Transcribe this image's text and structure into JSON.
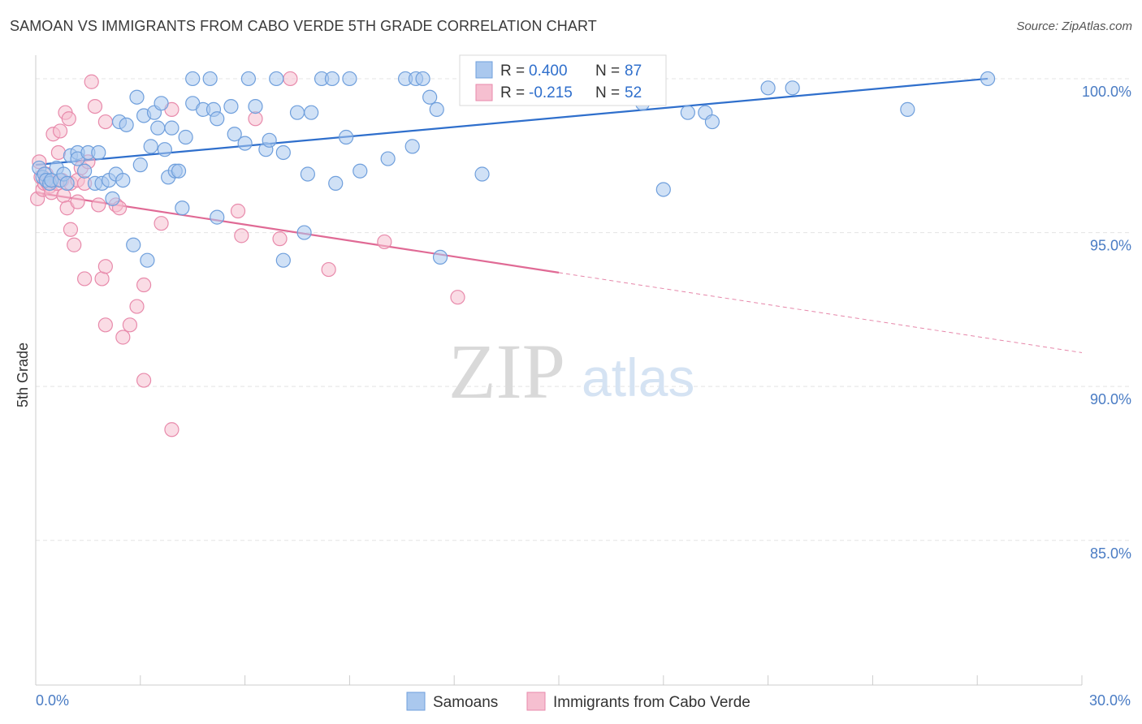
{
  "title": "SAMOAN VS IMMIGRANTS FROM CABO VERDE 5TH GRADE CORRELATION CHART",
  "source": "Source: ZipAtlas.com",
  "watermark": {
    "zip": "ZIP",
    "atlas": "atlas"
  },
  "colors": {
    "blue_fill": "#aac8ee",
    "blue_stroke": "#6f9fdc",
    "blue_line": "#2f6fcc",
    "pink_fill": "#f6bfd0",
    "pink_stroke": "#e88aab",
    "pink_line": "#e06a95",
    "tick_text": "#4a7cc4",
    "grid": "#e4e4e4"
  },
  "legend": {
    "rows": [
      {
        "r_label": "R = ",
        "r_value": "0.400",
        "n_label": "N = ",
        "n_value": "87"
      },
      {
        "r_label": "R = ",
        "r_value": "-0.215",
        "n_label": "N = ",
        "n_value": "52"
      }
    ],
    "placement": "top-center"
  },
  "chart_data": {
    "type": "scatter",
    "title": "SAMOAN VS IMMIGRANTS FROM CABO VERDE 5TH GRADE CORRELATION CHART",
    "xlabel": "",
    "ylabel": "5th Grade",
    "xlim": [
      0,
      30
    ],
    "ylim": [
      80.3,
      100.5
    ],
    "x_tick_labels": [
      "0.0%",
      "30.0%"
    ],
    "y_ticks": [
      85,
      90,
      95,
      100
    ],
    "y_tick_labels": [
      "85.0%",
      "90.0%",
      "95.0%",
      "100.0%"
    ],
    "grid": true,
    "series": [
      {
        "name": "Samoans",
        "color": "#aac8ee",
        "r": 0.4,
        "n": 87,
        "trend": {
          "x": [
            0,
            27.3
          ],
          "y": [
            97.2,
            100.0
          ]
        },
        "points": [
          [
            0.1,
            97.1
          ],
          [
            0.2,
            96.8
          ],
          [
            0.25,
            96.9
          ],
          [
            0.3,
            96.7
          ],
          [
            0.4,
            96.6
          ],
          [
            0.45,
            96.7
          ],
          [
            0.6,
            97.1
          ],
          [
            0.7,
            96.7
          ],
          [
            0.8,
            96.9
          ],
          [
            0.9,
            96.6
          ],
          [
            1.0,
            97.5
          ],
          [
            1.2,
            97.6
          ],
          [
            1.2,
            97.4
          ],
          [
            1.4,
            97.0
          ],
          [
            1.5,
            97.6
          ],
          [
            1.7,
            96.6
          ],
          [
            1.8,
            97.6
          ],
          [
            1.9,
            96.6
          ],
          [
            2.1,
            96.7
          ],
          [
            2.2,
            96.1
          ],
          [
            2.3,
            96.9
          ],
          [
            2.4,
            98.6
          ],
          [
            2.5,
            96.7
          ],
          [
            2.6,
            98.5
          ],
          [
            2.8,
            94.6
          ],
          [
            2.9,
            99.4
          ],
          [
            3.0,
            97.2
          ],
          [
            3.1,
            98.8
          ],
          [
            3.2,
            94.1
          ],
          [
            3.3,
            97.8
          ],
          [
            3.4,
            98.9
          ],
          [
            3.5,
            98.4
          ],
          [
            3.6,
            99.2
          ],
          [
            3.7,
            97.7
          ],
          [
            3.8,
            96.8
          ],
          [
            3.9,
            98.4
          ],
          [
            4.0,
            97.0
          ],
          [
            4.1,
            97.0
          ],
          [
            4.2,
            95.8
          ],
          [
            4.3,
            98.1
          ],
          [
            4.5,
            100.0
          ],
          [
            4.5,
            99.2
          ],
          [
            4.8,
            99.0
          ],
          [
            5.0,
            100.0
          ],
          [
            5.1,
            99.0
          ],
          [
            5.2,
            98.7
          ],
          [
            5.2,
            95.5
          ],
          [
            5.6,
            99.1
          ],
          [
            5.7,
            98.2
          ],
          [
            6.0,
            97.9
          ],
          [
            6.1,
            100.0
          ],
          [
            6.3,
            99.1
          ],
          [
            6.6,
            97.7
          ],
          [
            6.7,
            98.0
          ],
          [
            6.9,
            100.0
          ],
          [
            7.1,
            97.6
          ],
          [
            7.1,
            94.1
          ],
          [
            7.5,
            98.9
          ],
          [
            7.7,
            95.0
          ],
          [
            7.8,
            96.9
          ],
          [
            7.9,
            98.9
          ],
          [
            8.2,
            100.0
          ],
          [
            8.5,
            100.0
          ],
          [
            8.6,
            96.6
          ],
          [
            8.9,
            98.1
          ],
          [
            9.0,
            100.0
          ],
          [
            9.3,
            97.0
          ],
          [
            10.1,
            97.4
          ],
          [
            10.6,
            100.0
          ],
          [
            10.8,
            97.8
          ],
          [
            10.9,
            100.0
          ],
          [
            11.1,
            100.0
          ],
          [
            11.3,
            99.4
          ],
          [
            11.5,
            99.0
          ],
          [
            11.6,
            94.2
          ],
          [
            12.5,
            100.0
          ],
          [
            12.8,
            96.9
          ],
          [
            14.0,
            100.0
          ],
          [
            18.0,
            96.4
          ],
          [
            18.7,
            98.9
          ],
          [
            19.2,
            98.9
          ],
          [
            19.4,
            98.6
          ],
          [
            21.0,
            99.7
          ],
          [
            21.7,
            99.7
          ],
          [
            25.0,
            99.0
          ],
          [
            27.3,
            100.0
          ],
          [
            17.4,
            99.2
          ]
        ]
      },
      {
        "name": "Immigrants from Cabo Verde",
        "color": "#f6bfd0",
        "r": -0.215,
        "n": 52,
        "trend": {
          "x": [
            0,
            15.0
          ],
          "y": [
            96.3,
            93.7
          ]
        },
        "trend_dashed": {
          "x": [
            15.0,
            30.0
          ],
          "y": [
            93.7,
            91.1
          ]
        },
        "points": [
          [
            0.05,
            96.1
          ],
          [
            0.1,
            97.3
          ],
          [
            0.15,
            96.8
          ],
          [
            0.2,
            96.4
          ],
          [
            0.25,
            96.6
          ],
          [
            0.3,
            96.9
          ],
          [
            0.35,
            96.6
          ],
          [
            0.4,
            96.5
          ],
          [
            0.45,
            96.3
          ],
          [
            0.5,
            98.2
          ],
          [
            0.6,
            96.6
          ],
          [
            0.65,
            97.6
          ],
          [
            0.7,
            98.3
          ],
          [
            0.75,
            96.7
          ],
          [
            0.8,
            96.2
          ],
          [
            0.85,
            98.9
          ],
          [
            0.9,
            95.8
          ],
          [
            0.95,
            98.7
          ],
          [
            1.0,
            96.6
          ],
          [
            1.0,
            95.1
          ],
          [
            1.1,
            94.6
          ],
          [
            1.2,
            96.7
          ],
          [
            1.2,
            96.0
          ],
          [
            1.3,
            97.1
          ],
          [
            1.4,
            96.6
          ],
          [
            1.5,
            97.3
          ],
          [
            1.4,
            93.5
          ],
          [
            1.6,
            99.9
          ],
          [
            1.7,
            99.1
          ],
          [
            1.8,
            95.9
          ],
          [
            1.9,
            93.5
          ],
          [
            2.0,
            93.9
          ],
          [
            2.0,
            92.0
          ],
          [
            2.0,
            98.6
          ],
          [
            2.3,
            95.9
          ],
          [
            2.4,
            95.8
          ],
          [
            2.5,
            91.6
          ],
          [
            2.7,
            92.0
          ],
          [
            2.9,
            92.6
          ],
          [
            3.1,
            93.3
          ],
          [
            3.1,
            90.2
          ],
          [
            3.6,
            95.3
          ],
          [
            3.9,
            88.6
          ],
          [
            3.9,
            99.0
          ],
          [
            5.8,
            95.7
          ],
          [
            5.9,
            94.9
          ],
          [
            6.3,
            98.7
          ],
          [
            7.0,
            94.8
          ],
          [
            7.3,
            100.0
          ],
          [
            8.4,
            93.8
          ],
          [
            10.0,
            94.7
          ],
          [
            12.1,
            92.9
          ]
        ]
      }
    ]
  }
}
